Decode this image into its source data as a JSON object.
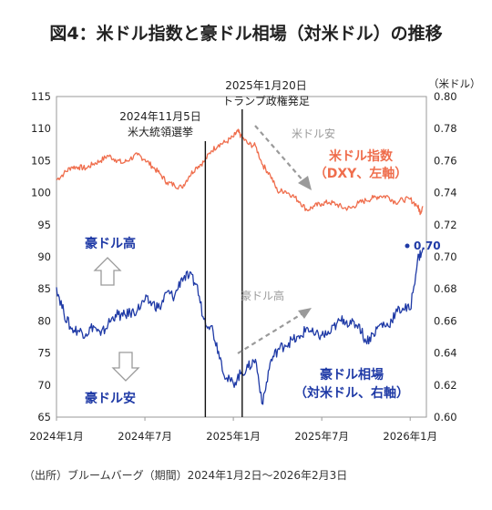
{
  "figure": {
    "title": "図4：米ドル指数と豪ドル相場（対米ドル）の推移",
    "source": "（出所）ブルームバーグ（期間）2024年1月2日～2026年2月3日"
  },
  "chart_data": {
    "type": "line",
    "title": "図4：米ドル指数と豪ドル相場（対米ドル）の推移",
    "x_tick_labels": [
      "2024年1月",
      "2024年7月",
      "2025年1月",
      "2025年7月",
      "2026年1月"
    ],
    "x_tick_months": [
      0,
      6,
      12,
      18,
      24
    ],
    "x_range_months": [
      0,
      25.1
    ],
    "y_left": {
      "ticks": [
        "115",
        "110",
        "105",
        "100",
        "95",
        "90",
        "85",
        "80",
        "75",
        "70",
        "65"
      ],
      "ylim": [
        65,
        115
      ]
    },
    "y_right": {
      "unit": "（米ドル）",
      "ticks": [
        "0.80",
        "0.78",
        "0.76",
        "0.74",
        "0.72",
        "0.70",
        "0.68",
        "0.66",
        "0.64",
        "0.62",
        "0.60"
      ],
      "ylim": [
        0.6,
        0.8
      ]
    },
    "series": [
      {
        "name": "米ドル指数（DXY、左軸）",
        "axis": "left",
        "color": "#ef6d4c",
        "points": [
          [
            0,
            102
          ],
          [
            0.5,
            103
          ],
          [
            1,
            104
          ],
          [
            1.5,
            104
          ],
          [
            2,
            103.8
          ],
          [
            2.5,
            104.5
          ],
          [
            3,
            105
          ],
          [
            3.5,
            105.8
          ],
          [
            4,
            105.2
          ],
          [
            4.5,
            104.6
          ],
          [
            5,
            105.3
          ],
          [
            5.5,
            105.9
          ],
          [
            6,
            105.2
          ],
          [
            6.5,
            104.1
          ],
          [
            7,
            103
          ],
          [
            7.5,
            101.6
          ],
          [
            8,
            101.2
          ],
          [
            8.5,
            100.8
          ],
          [
            9,
            102.6
          ],
          [
            9.5,
            104
          ],
          [
            10,
            104.8
          ],
          [
            10.5,
            106.5
          ],
          [
            11,
            107.5
          ],
          [
            11.5,
            107.9
          ],
          [
            12,
            108.7
          ],
          [
            12.3,
            109.6
          ],
          [
            12.5,
            108.9
          ],
          [
            13,
            107.6
          ],
          [
            13.5,
            107.3
          ],
          [
            14,
            104.3
          ],
          [
            14.5,
            102.8
          ],
          [
            15,
            100.2
          ],
          [
            15.5,
            100.3
          ],
          [
            16,
            99.6
          ],
          [
            16.5,
            98.6
          ],
          [
            17,
            97.3
          ],
          [
            17.5,
            97.9
          ],
          [
            18,
            98.3
          ],
          [
            18.5,
            98.5
          ],
          [
            19,
            98.2
          ],
          [
            19.5,
            97.6
          ],
          [
            20,
            97.6
          ],
          [
            20.5,
            98.4
          ],
          [
            21,
            98.8
          ],
          [
            21.5,
            99.2
          ],
          [
            22,
            99.5
          ],
          [
            22.5,
            99.4
          ],
          [
            23,
            98.5
          ],
          [
            23.5,
            98.9
          ],
          [
            24,
            99
          ],
          [
            24.5,
            97.9
          ],
          [
            24.7,
            96.9
          ],
          [
            24.85,
            97.9
          ]
        ]
      },
      {
        "name": "豪ドル相場（対米ドル、右軸）",
        "axis": "right",
        "color": "#1f3aa6",
        "end_label": "0.70",
        "points": [
          [
            0,
            0.681
          ],
          [
            0.5,
            0.665
          ],
          [
            1,
            0.655
          ],
          [
            1.5,
            0.654
          ],
          [
            2,
            0.652
          ],
          [
            2.5,
            0.657
          ],
          [
            3,
            0.651
          ],
          [
            3.5,
            0.658
          ],
          [
            4,
            0.664
          ],
          [
            4.5,
            0.663
          ],
          [
            5,
            0.665
          ],
          [
            5.5,
            0.667
          ],
          [
            6,
            0.673
          ],
          [
            6.5,
            0.671
          ],
          [
            7,
            0.668
          ],
          [
            7.5,
            0.678
          ],
          [
            8,
            0.675
          ],
          [
            8.5,
            0.687
          ],
          [
            9,
            0.688
          ],
          [
            9.5,
            0.683
          ],
          [
            10,
            0.661
          ],
          [
            10.5,
            0.657
          ],
          [
            11,
            0.641
          ],
          [
            11.5,
            0.624
          ],
          [
            12,
            0.621
          ],
          [
            12.5,
            0.627
          ],
          [
            13,
            0.631
          ],
          [
            13.5,
            0.636
          ],
          [
            14,
            0.608
          ],
          [
            14.5,
            0.634
          ],
          [
            15,
            0.642
          ],
          [
            15.5,
            0.645
          ],
          [
            16,
            0.648
          ],
          [
            16.5,
            0.649
          ],
          [
            17,
            0.656
          ],
          [
            17.5,
            0.651
          ],
          [
            18,
            0.651
          ],
          [
            18.5,
            0.652
          ],
          [
            19,
            0.658
          ],
          [
            19.5,
            0.661
          ],
          [
            20,
            0.658
          ],
          [
            20.5,
            0.658
          ],
          [
            21,
            0.647
          ],
          [
            21.5,
            0.652
          ],
          [
            22,
            0.658
          ],
          [
            22.5,
            0.657
          ],
          [
            23,
            0.665
          ],
          [
            23.5,
            0.668
          ],
          [
            24,
            0.667
          ],
          [
            24.5,
            0.698
          ],
          [
            24.85,
            0.705
          ]
        ]
      }
    ],
    "events": [
      {
        "label_line1": "2024年11月5日",
        "label_line2": "米大統領選挙",
        "month": 10.1
      },
      {
        "label_line1": "2025年1月20日",
        "label_line2": "トランプ政権発足",
        "month": 12.6
      }
    ],
    "annotations": {
      "usd_label_line1": "米ドル指数",
      "usd_label_line2": "（DXY、左軸）",
      "aud_label_line1": "豪ドル相場",
      "aud_label_line2": "（対米ドル、右軸）",
      "usd_weak": "米ドル安",
      "aud_strong_gray": "豪ドル高",
      "aud_strong": "豪ドル高",
      "aud_weak": "豪ドル安"
    },
    "colors": {
      "usd": "#ef6d4c",
      "aud": "#1f3aa6",
      "arrow_gray": "#9a9a9a"
    }
  }
}
